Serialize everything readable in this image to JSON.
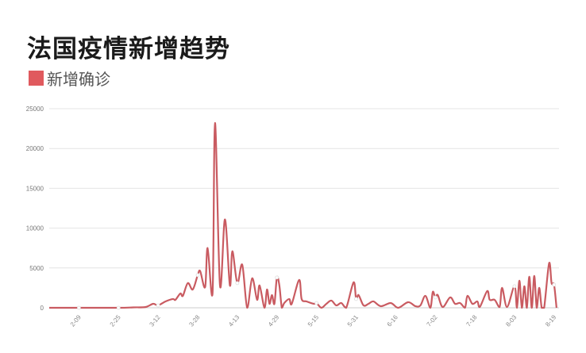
{
  "chart_data": {
    "type": "line",
    "title": "法国疫情新增趋势",
    "legend": [
      {
        "name": "新增确诊",
        "color": "#e05a5e"
      }
    ],
    "legend_position": "top-left",
    "line_color": "#c95b61",
    "grid": true,
    "ylim": [
      0,
      25000
    ],
    "yticks": [
      "0",
      "5000",
      "10000",
      "15000",
      "20000",
      "25000"
    ],
    "xlim": [
      "1-28",
      "8-21"
    ],
    "xticks": [
      "2-09",
      "2-25",
      "3-12",
      "3-28",
      "4-13",
      "4-29",
      "5-15",
      "5-31",
      "6-16",
      "7-02",
      "7-18",
      "8-03",
      "8-19"
    ],
    "series": [
      {
        "name": "新增确诊",
        "x": [
          "1-28",
          "2-09",
          "2-25",
          "3-02",
          "3-07",
          "3-10",
          "3-12",
          "3-15",
          "3-18",
          "3-19",
          "3-21",
          "3-22",
          "3-24",
          "3-26",
          "3-28",
          "3-29",
          "3-31",
          "4-01",
          "4-03",
          "4-04",
          "4-06",
          "4-08",
          "4-10",
          "4-11",
          "4-13",
          "4-15",
          "4-17",
          "4-19",
          "4-21",
          "4-22",
          "4-24",
          "4-25",
          "4-26",
          "4-27",
          "4-28",
          "4-29",
          "4-30",
          "5-01",
          "5-02",
          "5-04",
          "5-05",
          "5-08",
          "5-09",
          "5-11",
          "5-14",
          "5-15",
          "5-17",
          "5-19",
          "5-21",
          "5-23",
          "5-25",
          "5-27",
          "5-30",
          "5-31",
          "6-01",
          "6-03",
          "6-05",
          "6-07",
          "6-10",
          "6-14",
          "6-17",
          "6-21",
          "6-24",
          "6-26",
          "6-28",
          "6-30",
          "7-01",
          "7-02",
          "7-03",
          "7-05",
          "7-08",
          "7-10",
          "7-12",
          "7-14",
          "7-15",
          "7-17",
          "7-19",
          "7-20",
          "7-23",
          "7-24",
          "7-26",
          "7-28",
          "7-29",
          "7-31",
          "8-03",
          "8-04",
          "8-05",
          "8-06",
          "8-07",
          "8-08",
          "8-09",
          "8-10",
          "8-11",
          "8-12",
          "8-13",
          "8-14",
          "8-15",
          "8-17",
          "8-18",
          "8-19",
          "8-20"
        ],
        "values": [
          0,
          0,
          0,
          50,
          100,
          500,
          300,
          800,
          1100,
          1000,
          1800,
          1500,
          3100,
          2300,
          4100,
          4600,
          2600,
          7500,
          1800,
          23200,
          2800,
          11100,
          2800,
          7100,
          3100,
          5400,
          0,
          3700,
          1000,
          2800,
          0,
          2300,
          500,
          1600,
          500,
          3800,
          2800,
          0,
          600,
          1100,
          500,
          3500,
          1100,
          800,
          500,
          600,
          0,
          500,
          900,
          300,
          600,
          0,
          3200,
          1100,
          1600,
          300,
          500,
          800,
          200,
          600,
          0,
          700,
          200,
          300,
          1500,
          0,
          2000,
          1300,
          1600,
          100,
          1300,
          500,
          600,
          0,
          1500,
          500,
          800,
          100,
          2100,
          1000,
          1000,
          100,
          2500,
          100,
          2700,
          0,
          3400,
          0,
          2700,
          0,
          3900,
          0,
          4000,
          0,
          2500,
          0,
          0,
          5600,
          3100,
          2900,
          0
        ]
      }
    ]
  }
}
